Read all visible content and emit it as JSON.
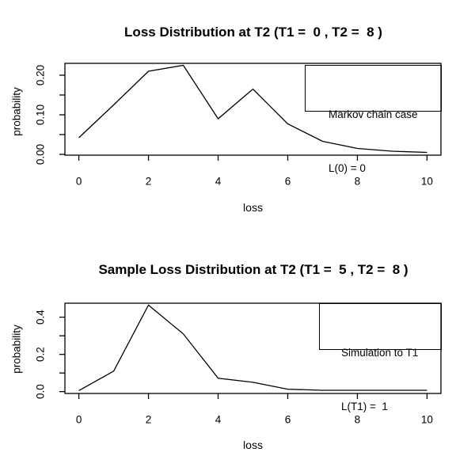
{
  "window": {
    "background": "#ffffff",
    "line_color": "#000000"
  },
  "charts": [
    {
      "title": "Loss Distribution at T2 (T1 =  0 , T2 =  8 )",
      "xlabel": "loss",
      "ylabel": "probability",
      "legend": {
        "line1": "Markov chain case",
        "line2": "L(0) = 0"
      },
      "chart_data": {
        "type": "line",
        "x": [
          0,
          1,
          2,
          3,
          4,
          5,
          6,
          7,
          8,
          9,
          10
        ],
        "values": [
          0.042,
          0.125,
          0.21,
          0.225,
          0.09,
          0.165,
          0.077,
          0.033,
          0.015,
          0.008,
          0.005
        ],
        "xlim": [
          -0.4,
          10.4
        ],
        "ylim": [
          -0.002,
          0.23
        ],
        "xticks": [
          0,
          2,
          4,
          6,
          8,
          10
        ],
        "xtick_labels": [
          "0",
          "2",
          "4",
          "6",
          "8",
          "10"
        ],
        "yticks": [
          0,
          0.05,
          0.1,
          0.15,
          0.2
        ],
        "ytick_labels": [
          "0.00",
          "",
          "0.10",
          "",
          "0.20"
        ],
        "grid": false,
        "legend_position": "topright",
        "line_color": "#000000"
      }
    },
    {
      "title": "Sample Loss Distribution at T2 (T1 =  5 , T2 =  8 )",
      "xlabel": "loss",
      "ylabel": "probability",
      "legend": {
        "line1": "Simulation to T1",
        "line2": "L(T1) =  1"
      },
      "chart_data": {
        "type": "line",
        "x": [
          0,
          1,
          2,
          3,
          4,
          5,
          6,
          7,
          8,
          9,
          10
        ],
        "values": [
          0.005,
          0.11,
          0.465,
          0.31,
          0.072,
          0.05,
          0.013,
          0.007,
          0.007,
          0.007,
          0.007
        ],
        "xlim": [
          -0.4,
          10.4
        ],
        "ylim": [
          -0.01,
          0.475
        ],
        "xticks": [
          0,
          2,
          4,
          6,
          8,
          10
        ],
        "xtick_labels": [
          "0",
          "2",
          "4",
          "6",
          "8",
          "10"
        ],
        "yticks": [
          0,
          0.1,
          0.2,
          0.3,
          0.4
        ],
        "ytick_labels": [
          "0.0",
          "",
          "0.2",
          "",
          "0.4"
        ],
        "grid": false,
        "legend_position": "topright",
        "line_color": "#000000"
      }
    }
  ]
}
